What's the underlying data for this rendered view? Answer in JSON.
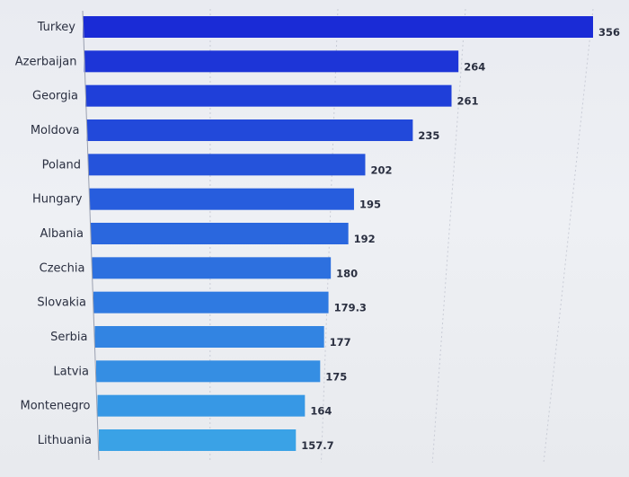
{
  "chart_data": {
    "type": "bar",
    "orientation": "horizontal",
    "categories": [
      "Turkey",
      "Azerbaijan",
      "Georgia",
      "Moldova",
      "Poland",
      "Hungary",
      "Albania",
      "Czechia",
      "Slovakia",
      "Serbia",
      "Latvia",
      "Montenegro",
      "Lithuania"
    ],
    "values": [
      356,
      264,
      261,
      235,
      202,
      195,
      192,
      180,
      179.3,
      177,
      175,
      164,
      157.7
    ],
    "value_labels": [
      "356",
      "264",
      "261",
      "235",
      "202",
      "195",
      "192",
      "180",
      "179.3",
      "177",
      "175",
      "164",
      "157.7"
    ],
    "title": "",
    "xlabel": "",
    "ylabel": "",
    "xlim": [
      0,
      356
    ],
    "grid": true,
    "legend": "none",
    "colors": {
      "bar_top": "#1a2bd6",
      "bar_bottom": "#3aa2e6",
      "axis": "#9aa0b0",
      "gridline": "#c9ccd6"
    }
  }
}
